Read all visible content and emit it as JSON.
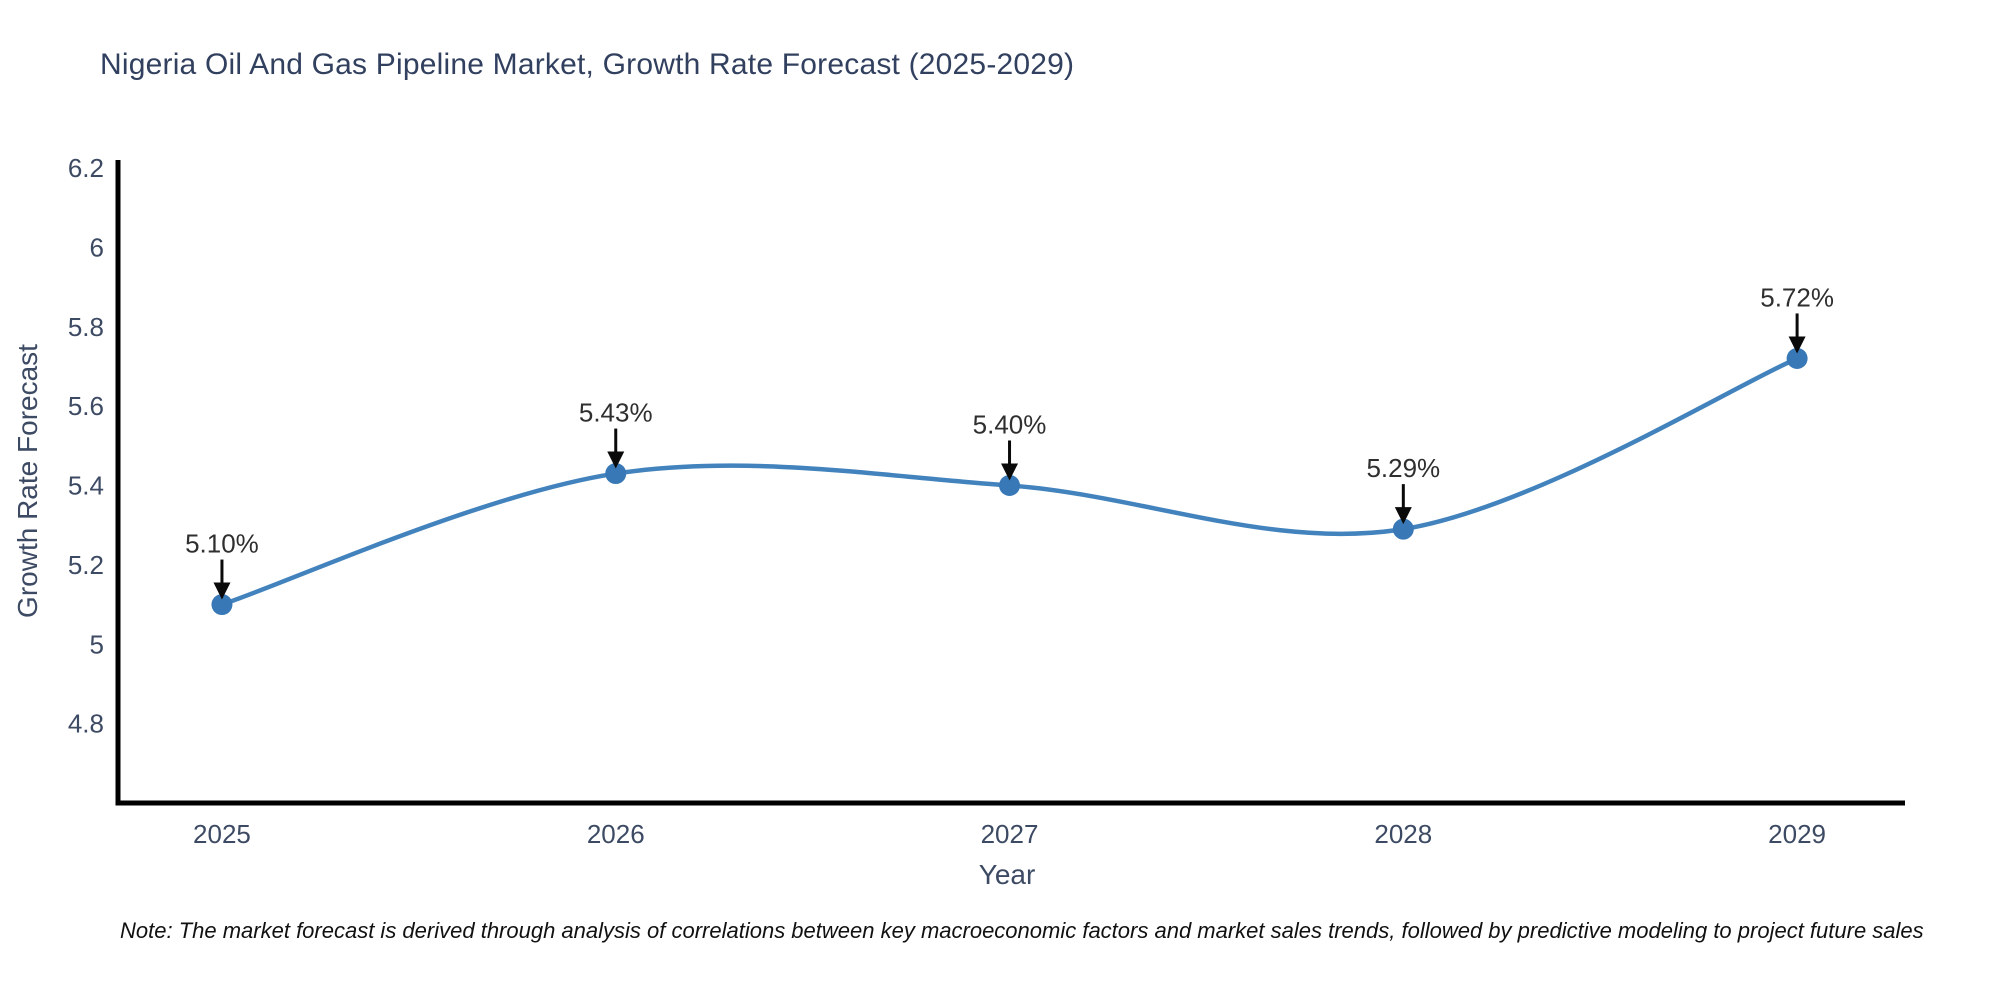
{
  "note": {
    "text": "Note: The market forecast is derived through analysis of correlations between key macroeconomic factors and market sales trends, followed by predictive modeling to project future sales"
  },
  "chart_data": {
    "type": "line",
    "line_shape": "spline",
    "title": "Nigeria Oil And Gas Pipeline Market, Growth Rate Forecast (2025-2029)",
    "xlabel": "Year",
    "ylabel": "Growth Rate Forecast",
    "x": [
      2025,
      2026,
      2027,
      2028,
      2029
    ],
    "values": [
      5.1,
      5.43,
      5.4,
      5.29,
      5.72
    ],
    "point_labels": [
      "5.10%",
      "5.43%",
      "5.40%",
      "5.29%",
      "5.72%"
    ],
    "xtick_labels": [
      "2025",
      "2026",
      "2027",
      "2028",
      "2029"
    ],
    "ytick_values": [
      4.8,
      5.0,
      5.2,
      5.4,
      5.6,
      5.8,
      6.0,
      6.2
    ],
    "ytick_labels": [
      "4.8",
      "5",
      "5.2",
      "5.4",
      "5.6",
      "5.8",
      "6",
      "6.2"
    ],
    "xlim": [
      2024.736,
      2029.274
    ],
    "ylim": [
      4.6,
      6.22
    ],
    "grid": false,
    "legend": "none",
    "colors": {
      "line": "#4383bd",
      "marker": "#3878b6",
      "axis": "#000000",
      "tick_text": "#3d4a63",
      "title_text": "#32405f",
      "annotation_text": "#2f2f2f",
      "arrow": "#0a0a0a"
    }
  }
}
